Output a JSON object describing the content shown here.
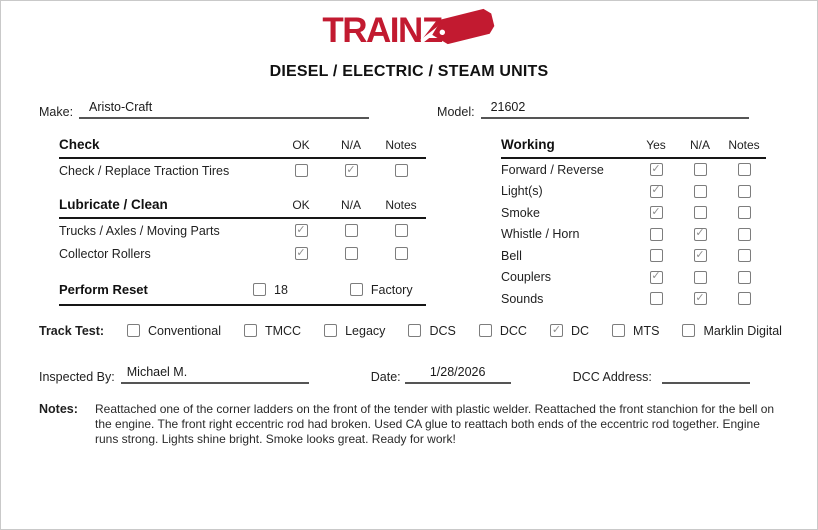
{
  "logo": {
    "text": "TRAINZ",
    "brand_red": "#C21A30"
  },
  "title": "DIESEL / ELECTRIC / STEAM UNITS",
  "fields": {
    "make": {
      "label": "Make:",
      "value": "Aristo-Craft"
    },
    "model": {
      "label": "Model:",
      "value": "21602"
    }
  },
  "sections": {
    "check": {
      "title": "Check",
      "columns": [
        "OK",
        "N/A",
        "Notes"
      ],
      "rows": [
        {
          "label": "Check / Replace Traction Tires",
          "checks": [
            false,
            true,
            false
          ]
        }
      ]
    },
    "lubricate": {
      "title": "Lubricate / Clean",
      "columns": [
        "OK",
        "N/A",
        "Notes"
      ],
      "rows": [
        {
          "label": "Trucks / Axles / Moving Parts",
          "checks": [
            true,
            false,
            false
          ]
        },
        {
          "label": "Collector Rollers",
          "checks": [
            true,
            false,
            false
          ]
        }
      ]
    },
    "perform_reset": {
      "title": "Perform Reset",
      "options": [
        {
          "label": "18",
          "checked": false
        },
        {
          "label": "Factory",
          "checked": false
        }
      ]
    },
    "working": {
      "title": "Working",
      "columns": [
        "Yes",
        "N/A",
        "Notes"
      ],
      "rows": [
        {
          "label": "Forward / Reverse",
          "checks": [
            true,
            false,
            false
          ]
        },
        {
          "label": "Light(s)",
          "checks": [
            true,
            false,
            false
          ]
        },
        {
          "label": "Smoke",
          "checks": [
            true,
            false,
            false
          ]
        },
        {
          "label": "Whistle / Horn",
          "checks": [
            false,
            true,
            false
          ]
        },
        {
          "label": "Bell",
          "checks": [
            false,
            true,
            false
          ]
        },
        {
          "label": "Couplers",
          "checks": [
            true,
            false,
            false
          ]
        },
        {
          "label": "Sounds",
          "checks": [
            false,
            true,
            false
          ]
        }
      ]
    },
    "track_test": {
      "label": "Track Test:",
      "options": [
        {
          "label": "Conventional",
          "checked": false
        },
        {
          "label": "TMCC",
          "checked": false
        },
        {
          "label": "Legacy",
          "checked": false
        },
        {
          "label": "DCS",
          "checked": false
        },
        {
          "label": "DCC",
          "checked": false
        },
        {
          "label": "DC",
          "checked": true
        },
        {
          "label": "MTS",
          "checked": false
        },
        {
          "label": "Marklin Digital",
          "checked": false
        }
      ]
    }
  },
  "footer": {
    "inspected_by": {
      "label": "Inspected By:",
      "value": "Michael M."
    },
    "date": {
      "label": "Date:",
      "value": "1/28/2026"
    },
    "dcc_address": {
      "label": "DCC Address:",
      "value": ""
    },
    "notes": {
      "label": "Notes:",
      "value": "Reattached one of the corner ladders on the front of the tender with plastic welder. Reattached the front stanchion for the bell on the engine. The front right eccentric rod had broken. Used CA glue to reattach both ends of the eccentric rod together. Engine runs strong. Lights shine bright. Smoke looks great. Ready for work!"
    }
  }
}
